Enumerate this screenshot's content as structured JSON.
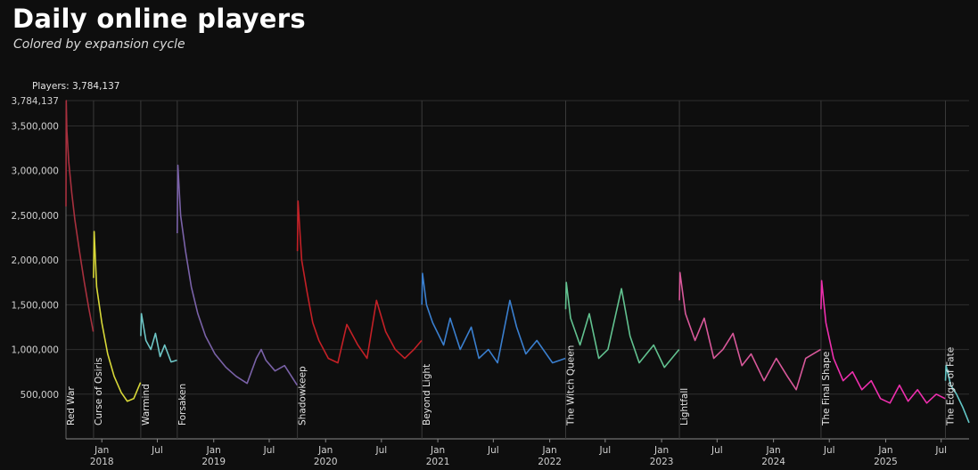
{
  "header": {
    "title": "Daily online players",
    "subtitle": "Colored by expansion cycle",
    "peak_label": "Players: 3,784,137"
  },
  "chart_data": {
    "type": "line",
    "title": "Daily online players",
    "subtitle": "Colored by expansion cycle",
    "xlabel": "",
    "ylabel": "",
    "ylim": [
      0,
      3784137
    ],
    "xlim": [
      "2017-09-06",
      "2025-09-30"
    ],
    "grid": true,
    "legend": "none",
    "y_ticks": [
      {
        "value": 500000,
        "label": "500,000"
      },
      {
        "value": 1000000,
        "label": "1,000,000"
      },
      {
        "value": 1500000,
        "label": "1,500,000"
      },
      {
        "value": 2000000,
        "label": "2,000,000"
      },
      {
        "value": 2500000,
        "label": "2,500,000"
      },
      {
        "value": 3000000,
        "label": "3,000,000"
      },
      {
        "value": 3500000,
        "label": "3,500,000"
      },
      {
        "value": 3784137,
        "label": "3,784,137"
      }
    ],
    "x_ticks": [
      {
        "date": "2018-01-01",
        "label": "Jan",
        "year": "2018"
      },
      {
        "date": "2018-07-01",
        "label": "Jul",
        "year": ""
      },
      {
        "date": "2019-01-01",
        "label": "Jan",
        "year": "2019"
      },
      {
        "date": "2019-07-01",
        "label": "Jul",
        "year": ""
      },
      {
        "date": "2020-01-01",
        "label": "Jan",
        "year": "2020"
      },
      {
        "date": "2020-07-01",
        "label": "Jul",
        "year": ""
      },
      {
        "date": "2021-01-01",
        "label": "Jan",
        "year": "2021"
      },
      {
        "date": "2021-07-01",
        "label": "Jul",
        "year": ""
      },
      {
        "date": "2022-01-01",
        "label": "Jan",
        "year": "2022"
      },
      {
        "date": "2022-07-01",
        "label": "Jul",
        "year": ""
      },
      {
        "date": "2023-01-01",
        "label": "Jan",
        "year": "2023"
      },
      {
        "date": "2023-07-01",
        "label": "Jul",
        "year": ""
      },
      {
        "date": "2024-01-01",
        "label": "Jan",
        "year": "2024"
      },
      {
        "date": "2024-07-01",
        "label": "Jul",
        "year": ""
      },
      {
        "date": "2025-01-01",
        "label": "Jan",
        "year": "2025"
      },
      {
        "date": "2025-07-01",
        "label": "Jul",
        "year": ""
      }
    ],
    "series": [
      {
        "name": "Red War",
        "color": "#a8303e",
        "x": [
          "2017-09-06",
          "2017-09-07",
          "2017-09-09",
          "2017-09-15",
          "2017-09-25",
          "2017-10-05",
          "2017-10-20",
          "2017-11-05",
          "2017-11-20",
          "2017-12-04"
        ],
        "y": [
          2600000,
          3784137,
          3450000,
          3100000,
          2750000,
          2450000,
          2100000,
          1750000,
          1450000,
          1200000
        ]
      },
      {
        "name": "Curse of Osiris",
        "color": "#d8d838",
        "x": [
          "2017-12-05",
          "2017-12-07",
          "2017-12-15",
          "2018-01-01",
          "2018-01-20",
          "2018-02-10",
          "2018-03-05",
          "2018-03-25",
          "2018-04-15",
          "2018-05-07"
        ],
        "y": [
          1800000,
          2320000,
          1700000,
          1300000,
          950000,
          700000,
          520000,
          420000,
          450000,
          630000
        ]
      },
      {
        "name": "Warmind",
        "color": "#6ec6c6",
        "x": [
          "2018-05-08",
          "2018-05-10",
          "2018-05-25",
          "2018-06-10",
          "2018-06-25",
          "2018-07-10",
          "2018-07-25",
          "2018-08-15",
          "2018-09-03"
        ],
        "y": [
          1150000,
          1400000,
          1100000,
          1000000,
          1180000,
          920000,
          1050000,
          860000,
          880000
        ]
      },
      {
        "name": "Forsaken",
        "color": "#7a62a8",
        "x": [
          "2018-09-04",
          "2018-09-06",
          "2018-09-15",
          "2018-10-01",
          "2018-10-20",
          "2018-11-10",
          "2018-12-05",
          "2019-01-05",
          "2019-02-10",
          "2019-03-15",
          "2019-04-20",
          "2019-05-20",
          "2019-06-05",
          "2019-06-20",
          "2019-07-20",
          "2019-08-20",
          "2019-09-30"
        ],
        "y": [
          2300000,
          3060000,
          2500000,
          2100000,
          1700000,
          1400000,
          1150000,
          950000,
          800000,
          700000,
          620000,
          900000,
          1000000,
          880000,
          760000,
          820000,
          600000
        ]
      },
      {
        "name": "Shadowkeep",
        "color": "#c42026",
        "x": [
          "2019-10-01",
          "2019-10-03",
          "2019-10-15",
          "2019-11-01",
          "2019-11-20",
          "2019-12-10",
          "2020-01-10",
          "2020-02-10",
          "2020-03-10",
          "2020-04-15",
          "2020-05-15",
          "2020-06-15",
          "2020-07-15",
          "2020-08-15",
          "2020-09-15",
          "2020-10-15",
          "2020-11-09"
        ],
        "y": [
          2100000,
          2660000,
          2000000,
          1650000,
          1300000,
          1100000,
          900000,
          850000,
          1280000,
          1050000,
          900000,
          1550000,
          1200000,
          1000000,
          900000,
          1000000,
          1100000
        ]
      },
      {
        "name": "Beyond Light",
        "color": "#3a7fcf",
        "x": [
          "2020-11-10",
          "2020-11-12",
          "2020-11-25",
          "2020-12-15",
          "2021-01-20",
          "2021-02-10",
          "2021-03-15",
          "2021-04-20",
          "2021-05-15",
          "2021-06-15",
          "2021-07-15",
          "2021-08-24",
          "2021-09-15",
          "2021-10-15",
          "2021-11-20",
          "2022-01-10",
          "2022-02-21"
        ],
        "y": [
          1500000,
          1850000,
          1500000,
          1300000,
          1050000,
          1350000,
          1000000,
          1250000,
          900000,
          1000000,
          850000,
          1550000,
          1250000,
          950000,
          1100000,
          850000,
          900000
        ]
      },
      {
        "name": "The Witch Queen",
        "color": "#62c290",
        "x": [
          "2022-02-22",
          "2022-02-24",
          "2022-03-10",
          "2022-04-10",
          "2022-05-10",
          "2022-06-10",
          "2022-07-10",
          "2022-08-23",
          "2022-09-20",
          "2022-10-20",
          "2022-12-06",
          "2023-01-10",
          "2023-02-27"
        ],
        "y": [
          1450000,
          1750000,
          1350000,
          1050000,
          1400000,
          900000,
          1000000,
          1680000,
          1150000,
          850000,
          1050000,
          800000,
          1000000
        ]
      },
      {
        "name": "Lightfall",
        "color": "#d8589a",
        "x": [
          "2023-02-28",
          "2023-03-02",
          "2023-03-20",
          "2023-04-20",
          "2023-05-20",
          "2023-06-20",
          "2023-07-20",
          "2023-08-22",
          "2023-09-20",
          "2023-10-20",
          "2023-12-01",
          "2024-01-10",
          "2024-02-15",
          "2024-03-15",
          "2024-04-15",
          "2024-06-03"
        ],
        "y": [
          1550000,
          1860000,
          1400000,
          1100000,
          1350000,
          900000,
          1000000,
          1180000,
          820000,
          950000,
          650000,
          900000,
          700000,
          550000,
          900000,
          1000000
        ]
      },
      {
        "name": "The Final Shape",
        "color": "#ee2fae",
        "x": [
          "2024-06-04",
          "2024-06-06",
          "2024-06-20",
          "2024-07-15",
          "2024-08-15",
          "2024-09-15",
          "2024-10-15",
          "2024-11-15",
          "2024-12-15",
          "2025-01-15",
          "2025-02-15",
          "2025-03-15",
          "2025-04-15",
          "2025-05-15",
          "2025-06-15",
          "2025-07-14"
        ],
        "y": [
          1450000,
          1770000,
          1300000,
          900000,
          650000,
          750000,
          550000,
          650000,
          450000,
          400000,
          600000,
          420000,
          550000,
          400000,
          500000,
          450000
        ]
      },
      {
        "name": "The Edge of Fate",
        "color": "#62c6c6",
        "x": [
          "2025-07-15",
          "2025-07-17",
          "2025-08-01",
          "2025-08-20",
          "2025-09-10",
          "2025-09-30"
        ],
        "y": [
          650000,
          820000,
          600000,
          500000,
          350000,
          180000
        ]
      }
    ]
  }
}
